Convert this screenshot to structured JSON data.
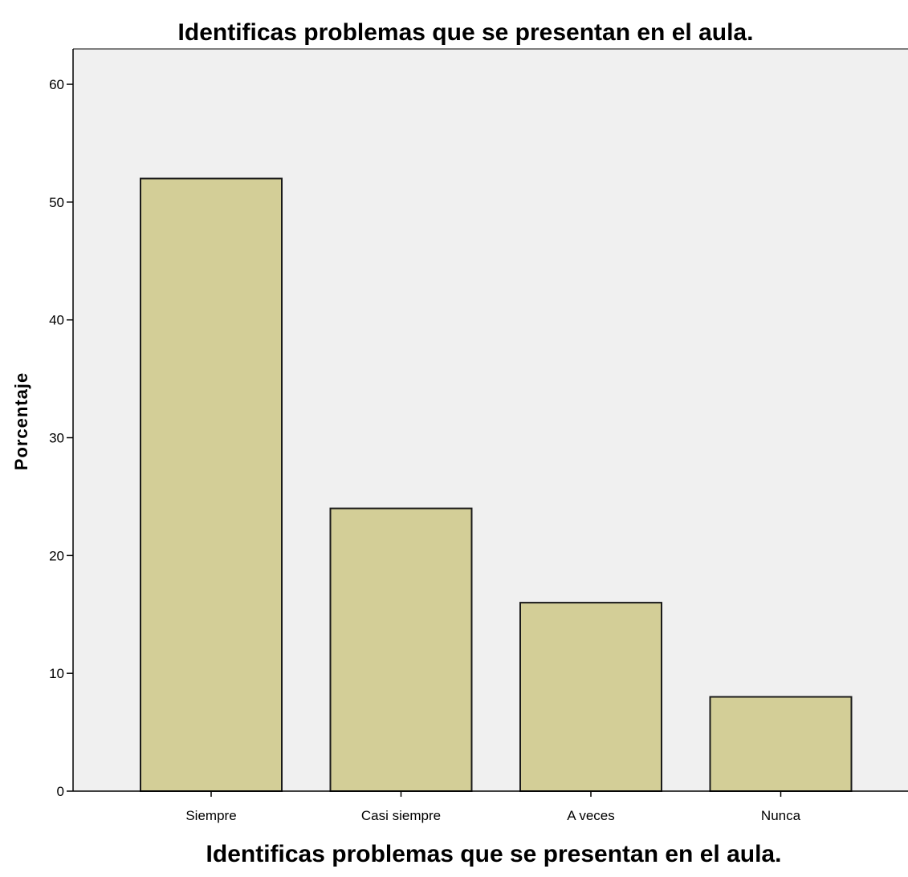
{
  "chart_data": {
    "type": "bar",
    "title": "Identificas problemas que se presentan en el aula.",
    "xlabel": "Identificas problemas que se presentan en el aula.",
    "ylabel": "Porcentaje",
    "categories": [
      "Siempre",
      "Casi siempre",
      "A veces",
      "Nunca"
    ],
    "values": [
      52,
      24,
      16,
      8
    ],
    "ylim": [
      0,
      63
    ],
    "yticks": [
      0,
      10,
      20,
      30,
      40,
      50,
      60
    ],
    "grid": false,
    "legend": "none",
    "colors": {
      "bar_fill": "#d3ce97",
      "bar_stroke": "#1a1a1a",
      "plot_background": "#f0f0f0",
      "axis": "#000000"
    }
  }
}
